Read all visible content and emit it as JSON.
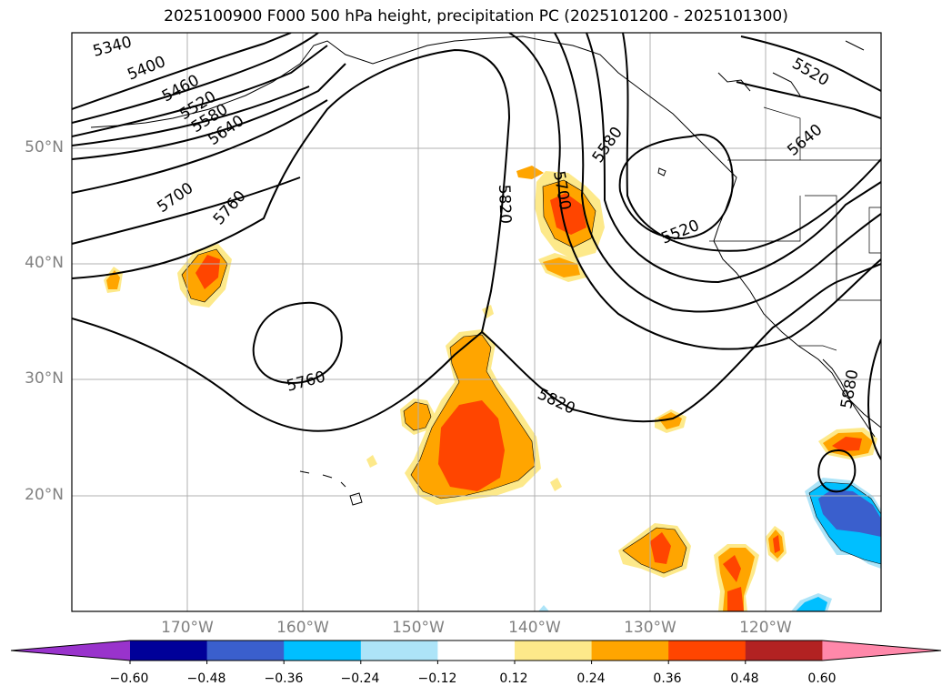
{
  "title": "2025100900 F000 500 hPa height, precipitation PC (2025101200 - 2025101300)",
  "map": {
    "lon_range": [
      -180,
      -110
    ],
    "lat_range": [
      10,
      60
    ],
    "lat_ticks": [
      "50°N",
      "40°N",
      "30°N",
      "20°N"
    ],
    "lon_ticks": [
      "170°W",
      "160°W",
      "150°W",
      "140°W",
      "130°W",
      "120°W"
    ],
    "height_contour_labels": [
      "5340",
      "5400",
      "5460",
      "5520",
      "5580",
      "5640",
      "5700",
      "5760",
      "5820",
      "5700",
      "5580",
      "5520",
      "5640",
      "5520",
      "5760",
      "5820",
      "5880"
    ],
    "gridlines": true
  },
  "colorbar": {
    "colors": [
      "#9933cc",
      "#000099",
      "#3a5fcd",
      "#00bfff",
      "#ade4f8",
      "#ffffff",
      "#fde98a",
      "#ffa500",
      "#ff4500",
      "#b22222",
      "#ff88aa"
    ],
    "ticks": [
      "−0.60",
      "−0.48",
      "−0.36",
      "−0.24",
      "−0.12",
      "0.12",
      "0.24",
      "0.36",
      "0.48",
      "0.60"
    ],
    "extend": "both"
  }
}
